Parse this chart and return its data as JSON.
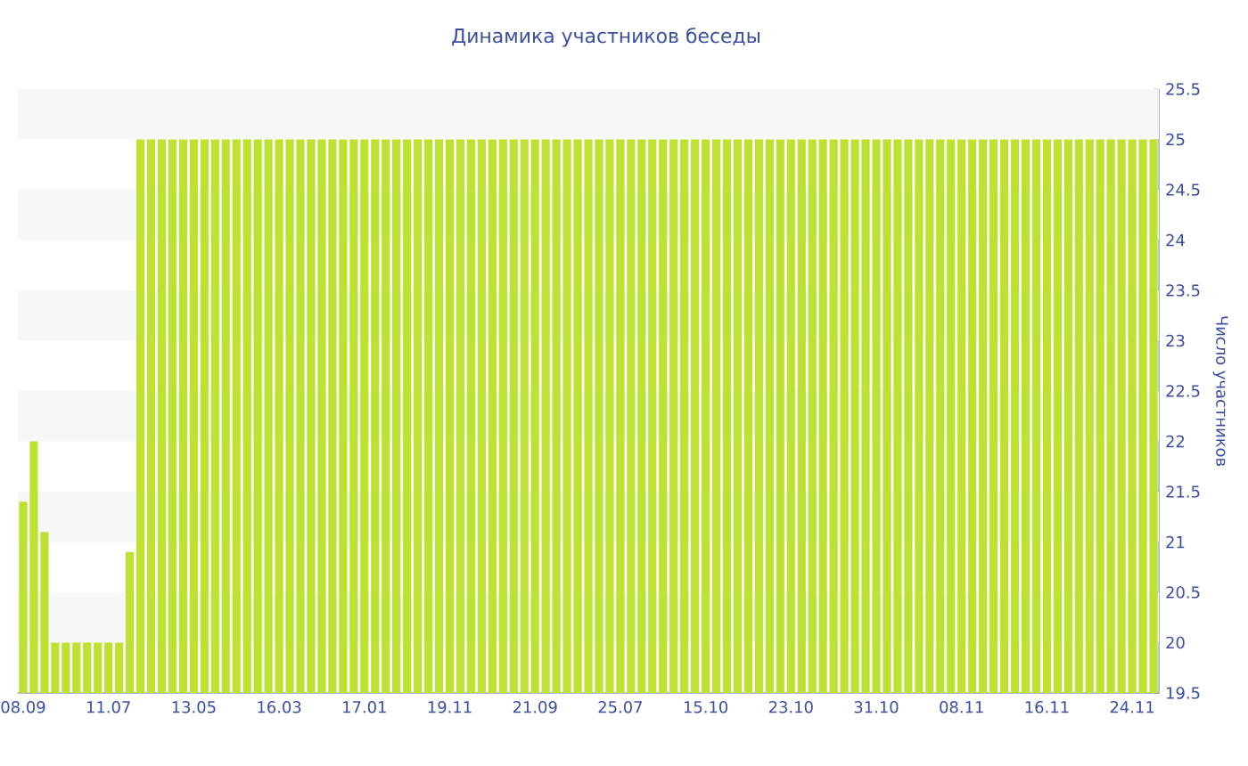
{
  "chart_data": {
    "type": "bar",
    "title": "Динамика участников беседы",
    "ylabel": "Число участников",
    "categories": [
      "08.09",
      null,
      null,
      null,
      null,
      null,
      null,
      null,
      "11.07",
      null,
      null,
      null,
      null,
      null,
      null,
      null,
      "13.05",
      null,
      null,
      null,
      null,
      null,
      null,
      null,
      "16.03",
      null,
      null,
      null,
      null,
      null,
      null,
      null,
      "17.01",
      null,
      null,
      null,
      null,
      null,
      null,
      null,
      "19.11",
      null,
      null,
      null,
      null,
      null,
      null,
      null,
      "21.09",
      null,
      null,
      null,
      null,
      null,
      null,
      null,
      "25.07",
      null,
      null,
      null,
      null,
      null,
      null,
      null,
      "15.10",
      null,
      null,
      null,
      null,
      null,
      null,
      null,
      "23.10",
      null,
      null,
      null,
      null,
      null,
      null,
      null,
      "31.10",
      null,
      null,
      null,
      null,
      null,
      null,
      null,
      "08.11",
      null,
      null,
      null,
      null,
      null,
      null,
      null,
      "16.11",
      null,
      null,
      null,
      null,
      null,
      null,
      null,
      "24.11",
      null,
      null
    ],
    "values": [
      21.4,
      22,
      21.1,
      20,
      20,
      20,
      20,
      20,
      20,
      20,
      20.9,
      25,
      25,
      25,
      25,
      25,
      25,
      25,
      25,
      25,
      25,
      25,
      25,
      25,
      25,
      25,
      25,
      25,
      25,
      25,
      25,
      25,
      25,
      25,
      25,
      25,
      25,
      25,
      25,
      25,
      25,
      25,
      25,
      25,
      25,
      25,
      25,
      25,
      25,
      25,
      25,
      25,
      25,
      25,
      25,
      25,
      25,
      25,
      25,
      25,
      25,
      25,
      25,
      25,
      25,
      25,
      25,
      25,
      25,
      25,
      25,
      25,
      25,
      25,
      25,
      25,
      25,
      25,
      25,
      25,
      25,
      25,
      25,
      25,
      25,
      25,
      25,
      25,
      25,
      25,
      25,
      25,
      25,
      25,
      25,
      25,
      25,
      25,
      25,
      25,
      25,
      25,
      25,
      25,
      25,
      25,
      25
    ],
    "color": "#bde232",
    "ylim": [
      19.5,
      25.5
    ],
    "yticks": [
      19.5,
      20,
      20.5,
      21,
      21.5,
      22,
      22.5,
      23,
      23.5,
      24,
      24.5,
      25,
      25.5
    ],
    "bands": [
      {
        "axis": "y",
        "from": 20,
        "to": 20.5,
        "color": "#f7f7f7"
      },
      {
        "axis": "y",
        "from": 21,
        "to": 21.5,
        "color": "#f7f7f7"
      },
      {
        "axis": "y",
        "from": 22,
        "to": 22.5,
        "color": "#f7f7f7"
      },
      {
        "axis": "y",
        "from": 23,
        "to": 23.5,
        "color": "#f7f7f7"
      },
      {
        "axis": "y",
        "from": 24,
        "to": 24.5,
        "color": "#f7f7f7"
      },
      {
        "axis": "y",
        "from": 25,
        "to": 25.5,
        "color": "#f7f7f7"
      }
    ]
  }
}
